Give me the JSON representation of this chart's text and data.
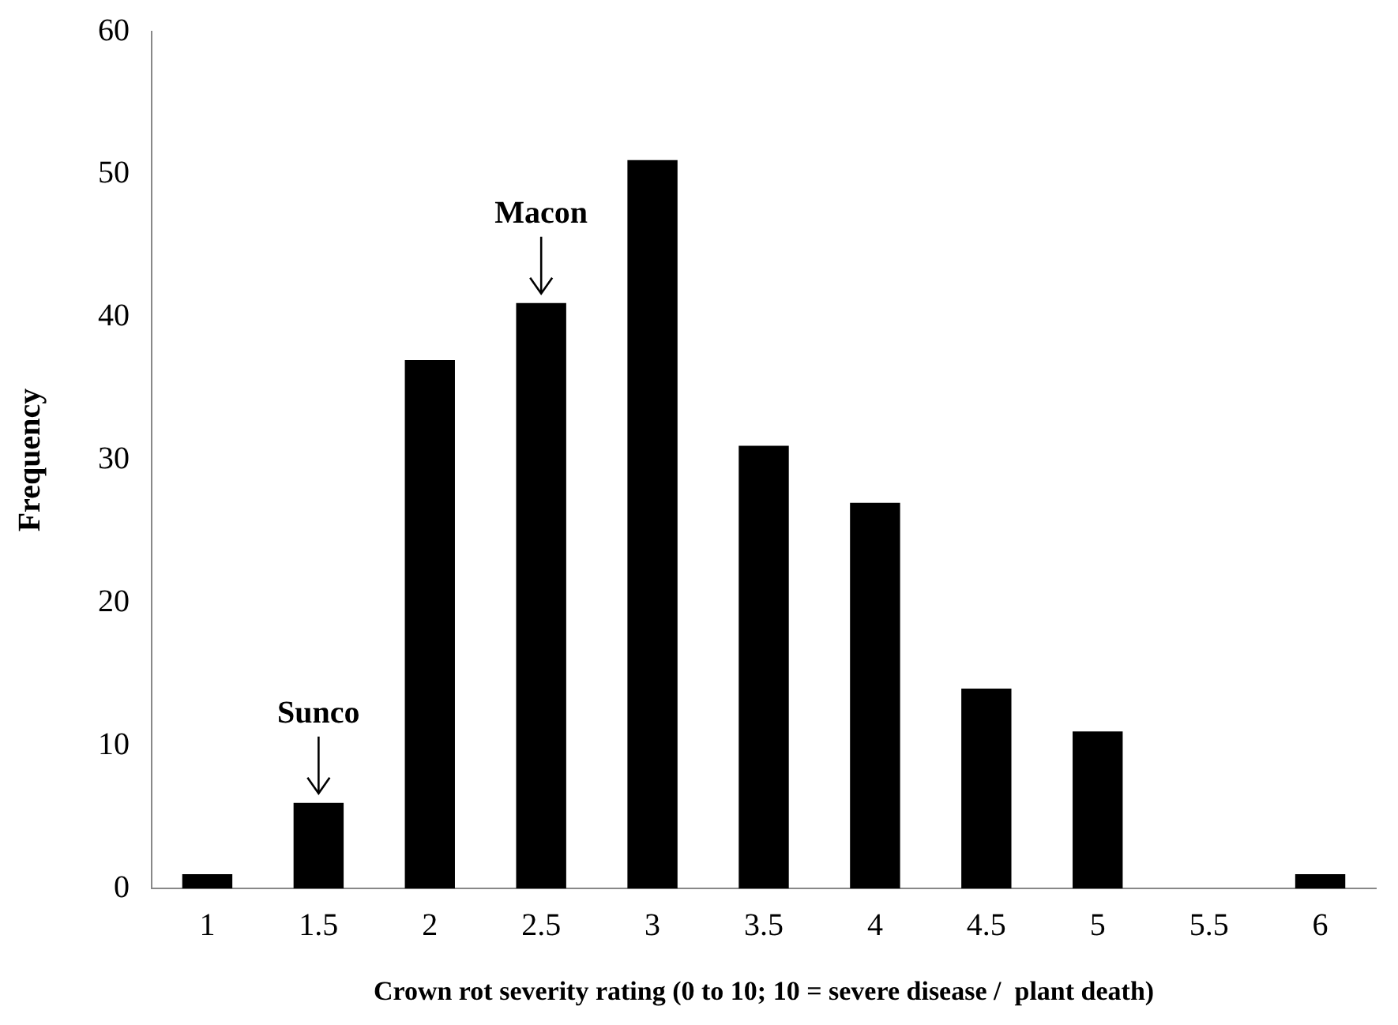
{
  "chart_data": {
    "type": "bar",
    "xlabel": "Crown rot severity rating (0 to 10; 10 = severe disease /  plant death)",
    "ylabel": "Frequency",
    "categories": [
      "1",
      "1.5",
      "2",
      "2.5",
      "3",
      "3.5",
      "4",
      "4.5",
      "5",
      "5.5",
      "6"
    ],
    "values": [
      1,
      6,
      37,
      41,
      51,
      31,
      27,
      14,
      11,
      0,
      1
    ],
    "color": "#000000",
    "ylim": [
      0,
      60
    ],
    "yticks": [
      0,
      10,
      20,
      30,
      40,
      50,
      60
    ],
    "grid": false,
    "legend": false,
    "annotations": [
      {
        "text": "Sunco",
        "x": "1.5",
        "y": 6
      },
      {
        "text": "Macon",
        "x": "2.5",
        "y": 41
      }
    ]
  }
}
